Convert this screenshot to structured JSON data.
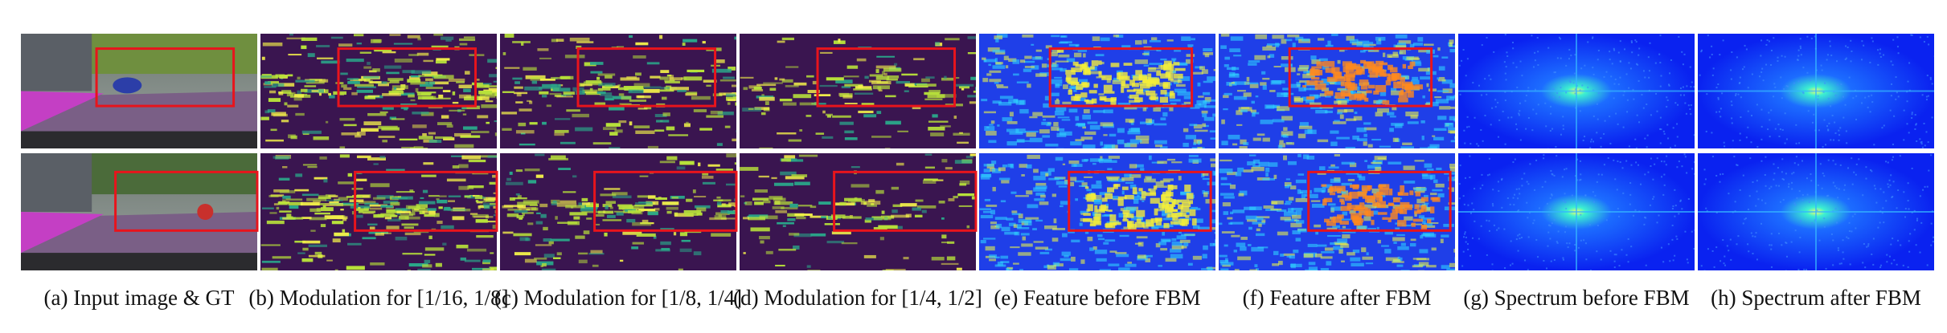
{
  "figure": {
    "panels": [
      {
        "caption": "(a) Input image & GT"
      },
      {
        "caption": "(b) Modulation for [1/16, 1/8]"
      },
      {
        "caption": "(c) Modulation for [1/8, 1/4]"
      },
      {
        "caption": "(d) Modulation for [1/4, 1/2]"
      },
      {
        "caption": "(e) Feature before FBM"
      },
      {
        "caption": "(f) Feature after FBM"
      },
      {
        "caption": "(g) Spectrum before FBM"
      },
      {
        "caption": "(h) Spectrum after FBM"
      }
    ]
  }
}
